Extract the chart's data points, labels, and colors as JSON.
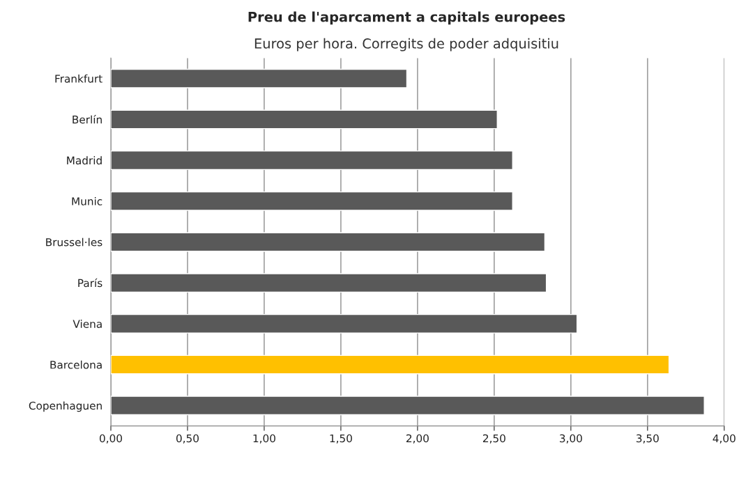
{
  "chart_data": {
    "type": "bar",
    "orientation": "horizontal",
    "title": "Preu de l'aparcament a capitals europees",
    "subtitle": "Euros per hora. Corregits de poder adquisitiu",
    "categories": [
      "Frankfurt",
      "Berlín",
      "Madrid",
      "Munic",
      "Brussel·les",
      "París",
      "Viena",
      "Barcelona",
      "Copenhaguen"
    ],
    "values": [
      1.93,
      2.52,
      2.62,
      2.62,
      2.83,
      2.84,
      3.04,
      3.64,
      3.87
    ],
    "colors": [
      "#595959",
      "#595959",
      "#595959",
      "#595959",
      "#595959",
      "#595959",
      "#595959",
      "#ffc000",
      "#595959"
    ],
    "xlim": [
      0,
      4
    ],
    "xticks": [
      {
        "value": 0,
        "label": "0,00"
      },
      {
        "value": 0.5,
        "label": "0,50"
      },
      {
        "value": 1,
        "label": "1,00"
      },
      {
        "value": 1.5,
        "label": "1,50"
      },
      {
        "value": 2,
        "label": "2,00"
      },
      {
        "value": 2.5,
        "label": "2,50"
      },
      {
        "value": 3,
        "label": "3,00"
      },
      {
        "value": 3.5,
        "label": "3,50"
      },
      {
        "value": 4,
        "label": "4,00"
      }
    ],
    "grid": "x",
    "legend": false
  }
}
